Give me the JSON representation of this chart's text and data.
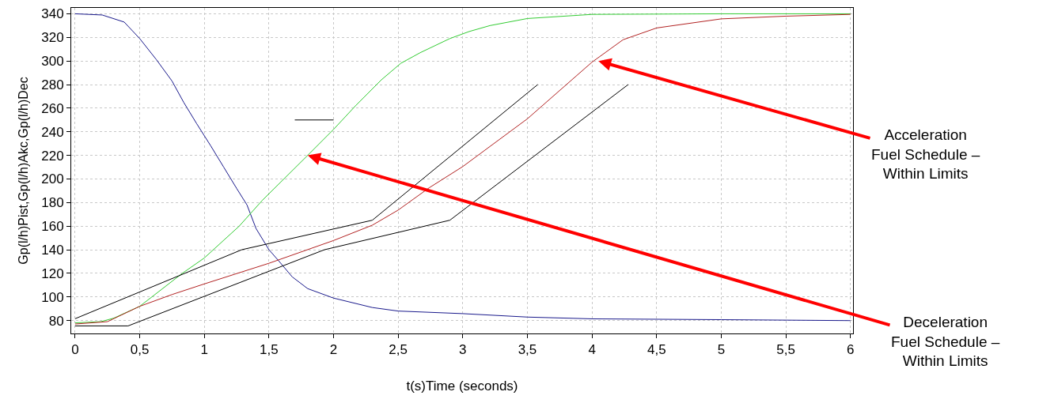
{
  "chart_data": {
    "type": "line",
    "xlabel": "t(s)Time (seconds)",
    "ylabel": "Gp(l/h)Pist,Gp(l/h)Akc,Gp(l/h)Dec",
    "xlim": [
      -0.03,
      6.02
    ],
    "ylim": [
      69,
      345
    ],
    "xticks": [
      0,
      {
        "value": 0.5,
        "label": "0,5"
      },
      1,
      {
        "value": 1.5,
        "label": "1,5"
      },
      2,
      {
        "value": 2.5,
        "label": "2,5"
      },
      3,
      {
        "value": 3.5,
        "label": "3,5"
      },
      4,
      {
        "value": 4.5,
        "label": "4,5"
      },
      5,
      {
        "value": 5.5,
        "label": "5,5"
      },
      6
    ],
    "yticks": [
      80,
      100,
      120,
      140,
      160,
      180,
      200,
      220,
      240,
      260,
      280,
      300,
      320,
      340
    ],
    "grid": true,
    "marker": "none",
    "line_style": "solid",
    "series": [
      {
        "color": "#1a1a8c",
        "x": [
          0,
          0.21,
          0.38,
          0.5,
          0.63,
          0.75,
          0.84,
          0.94,
          1.05,
          1.15,
          1.25,
          1.33,
          1.4,
          1.5,
          1.58,
          1.68,
          1.8,
          2.0,
          2.3,
          2.5,
          3.0,
          3.5,
          4.0,
          5.0,
          6.0
        ],
        "values": [
          340,
          339,
          333,
          319,
          301,
          283,
          265,
          247,
          228,
          210,
          192,
          178,
          158,
          140,
          130,
          117,
          107,
          99,
          91,
          88,
          85.8,
          82.9,
          81.4,
          80.7,
          79.9
        ]
      },
      {
        "color": "#33cc33",
        "x": [
          0,
          0.2,
          0.3,
          0.5,
          0.83,
          1.0,
          1.27,
          1.45,
          1.8,
          2.0,
          2.17,
          2.37,
          2.52,
          2.67,
          2.9,
          3.05,
          3.21,
          3.5,
          4.0,
          5.0,
          6.0
        ],
        "values": [
          78,
          79,
          82,
          92,
          120,
          133,
          160,
          182,
          220,
          242,
          262,
          284,
          298,
          307,
          319,
          325,
          330,
          336,
          339.5,
          340,
          340
        ]
      },
      {
        "color": "#b22222",
        "x": [
          0,
          0.25,
          0.5,
          0.75,
          1.0,
          1.5,
          2.0,
          2.3,
          2.5,
          2.74,
          3.0,
          3.5,
          4.0,
          4.24,
          4.5,
          5.0,
          5.5,
          6.0
        ],
        "values": [
          77,
          79,
          92,
          102,
          111,
          128.5,
          147.8,
          160.8,
          173.6,
          192.5,
          210.5,
          251,
          299,
          318,
          328,
          335.7,
          338,
          339.5
        ]
      },
      {
        "color": "#000000",
        "x": [
          0,
          1.29,
          2.3,
          3.58
        ],
        "values": [
          81.5,
          140,
          165,
          280
        ]
      },
      {
        "color": "#000000",
        "x": [
          0,
          0.41,
          1.93,
          2.9,
          4.28
        ],
        "values": [
          75.4,
          75.4,
          140,
          165,
          280
        ]
      },
      {
        "color": "#000000",
        "x": [
          1.7,
          2.0
        ],
        "values": [
          250,
          250
        ]
      }
    ],
    "annotations": [
      {
        "text": "Acceleration\nFuel Schedule –\nWithin Limits",
        "x": 4.05,
        "y": 300
      },
      {
        "text": "Deceleration\nFuel Schedule –\nWithin Limits",
        "x": 1.8,
        "y": 220
      }
    ]
  }
}
